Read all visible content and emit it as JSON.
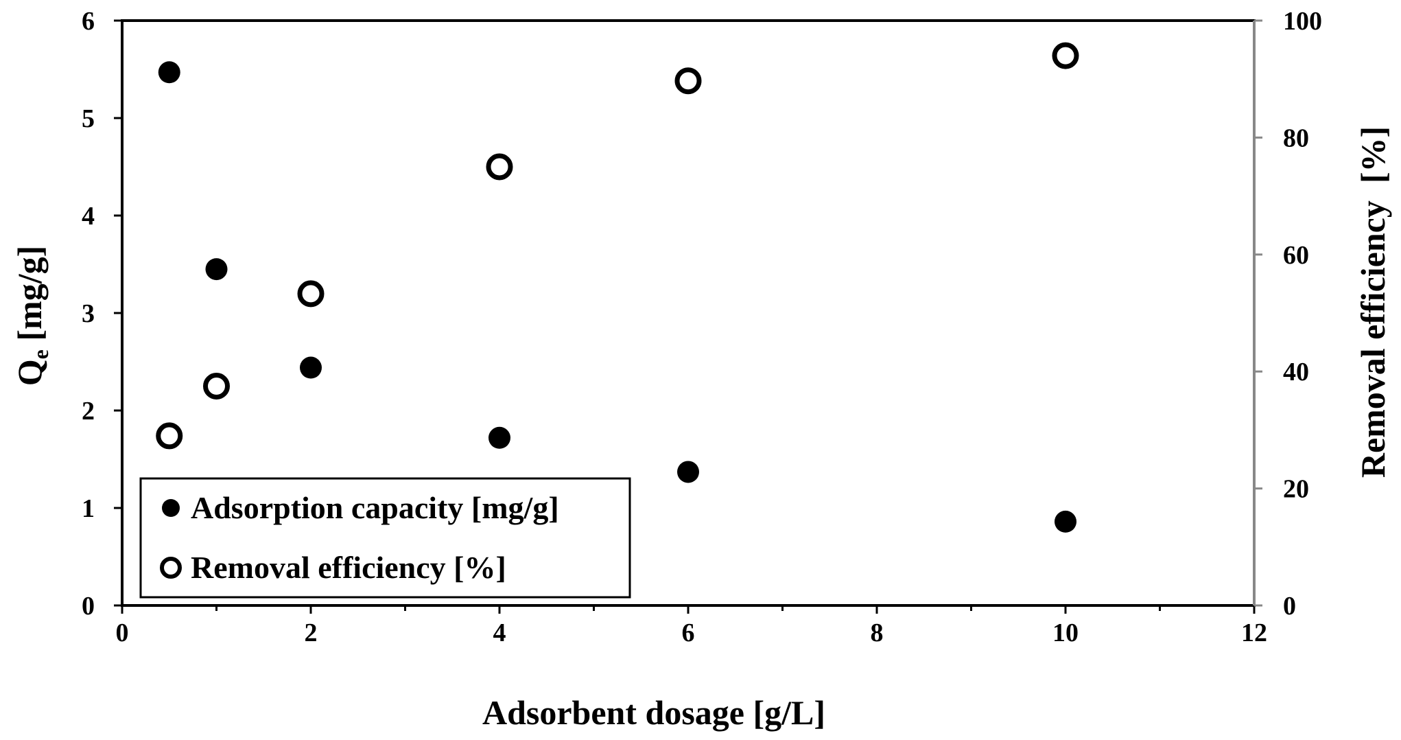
{
  "chart_data": {
    "type": "scatter",
    "xlabel": "Adsorbent dosage [g/L]",
    "ylabel_main": "Q",
    "ylabel_sub": "e",
    "ylabel_suffix": " [mg/g]",
    "y2label": "Removal efficiency  [%]",
    "xlim": [
      0,
      12
    ],
    "ylim": [
      0,
      6
    ],
    "y2lim": [
      0,
      100
    ],
    "x_ticks": [
      0,
      2,
      4,
      6,
      8,
      10,
      12
    ],
    "y_ticks": [
      0,
      1,
      2,
      3,
      4,
      5,
      6
    ],
    "y2_ticks": [
      0,
      20,
      40,
      60,
      80,
      100
    ],
    "series": [
      {
        "name": "Adsorption capacity [mg/g]",
        "axis": "left",
        "marker": "filled-circle",
        "x": [
          0.5,
          1,
          2,
          4,
          6,
          10
        ],
        "y": [
          5.47,
          3.45,
          2.44,
          1.72,
          1.37,
          0.86
        ]
      },
      {
        "name": "Removal efficiency [%]",
        "axis": "right",
        "marker": "open-circle",
        "x": [
          0.5,
          1,
          2,
          4,
          6,
          10
        ],
        "y": [
          29,
          37.5,
          53.3,
          75,
          89.7,
          94
        ]
      }
    ],
    "legend_position": "bottom-left"
  }
}
